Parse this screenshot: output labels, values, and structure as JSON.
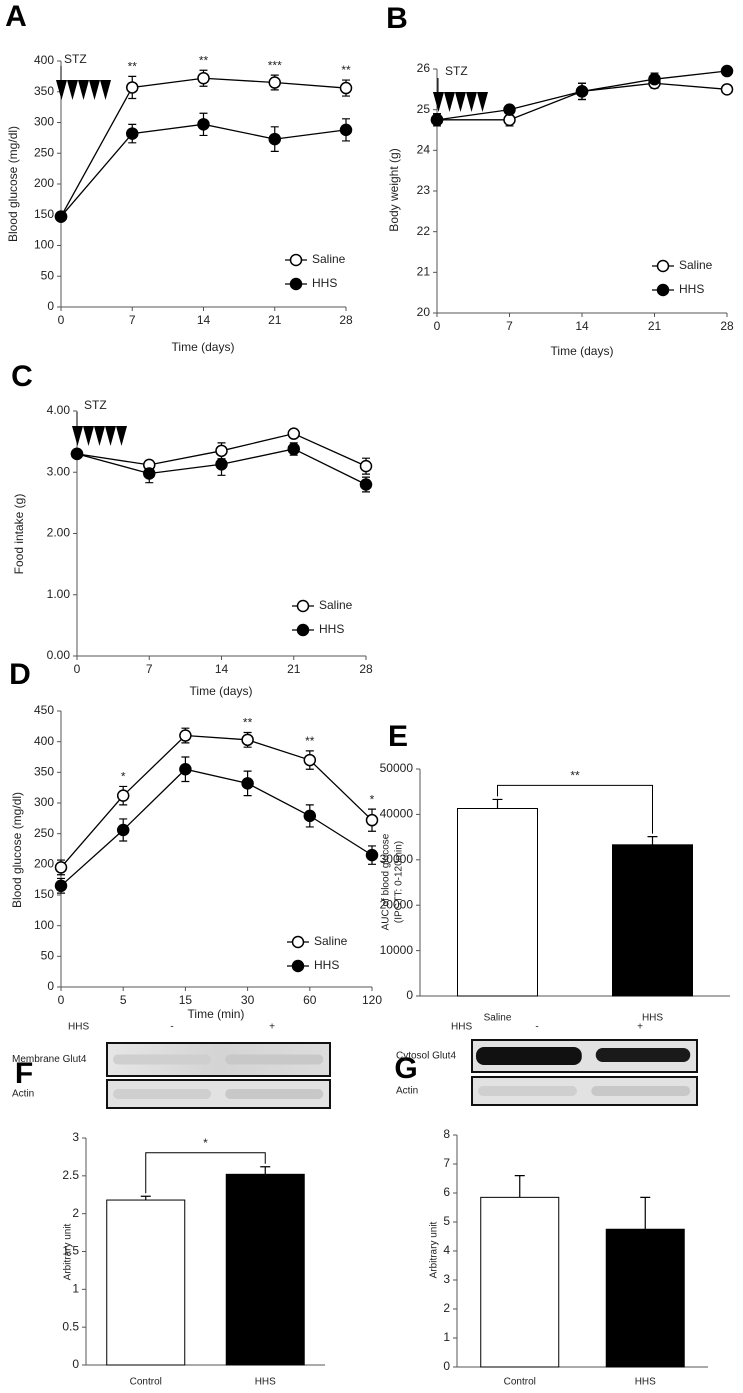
{
  "chart_data": [
    {
      "type": "line",
      "label": "A",
      "xlabel": "Time (days)",
      "ylabel": "Blood glucose (mg/dl)",
      "annotation": "STZ",
      "x": [
        0,
        7,
        14,
        21,
        28
      ],
      "xlim": [
        0,
        28
      ],
      "xticks": [
        0,
        7,
        14,
        21,
        28
      ],
      "ylim": [
        0,
        400
      ],
      "yticks": [
        0,
        50,
        100,
        150,
        200,
        250,
        300,
        350,
        400
      ],
      "series": [
        {
          "name": "Saline",
          "color": "#ffffff",
          "values": [
            147,
            357,
            372,
            365,
            356
          ],
          "errors": [
            5,
            18,
            13,
            12,
            13
          ]
        },
        {
          "name": "HHS",
          "color": "#000000",
          "values": [
            147,
            282,
            297,
            273,
            288
          ],
          "errors": [
            5,
            15,
            18,
            20,
            18
          ]
        }
      ],
      "significance": [
        null,
        "**",
        "**",
        "***",
        "**"
      ],
      "legend": "lower right"
    },
    {
      "type": "line",
      "label": "B",
      "xlabel": "Time (days)",
      "ylabel": "Body weight (g)",
      "annotation": "STZ",
      "x": [
        0,
        7,
        14,
        21,
        28
      ],
      "xlim": [
        0,
        28
      ],
      "xticks": [
        0,
        7,
        14,
        21,
        28
      ],
      "ylim": [
        20,
        26
      ],
      "yticks": [
        20,
        21,
        22,
        23,
        24,
        25,
        26
      ],
      "series": [
        {
          "name": "Saline",
          "color": "#ffffff",
          "values": [
            24.75,
            24.75,
            25.45,
            25.65,
            25.5
          ],
          "errors": [
            0.15,
            0.15,
            0.2,
            0.12,
            0.05
          ]
        },
        {
          "name": "HHS",
          "color": "#000000",
          "values": [
            24.75,
            25.0,
            25.45,
            25.75,
            25.95
          ],
          "errors": [
            0.15,
            0.1,
            0.2,
            0.15,
            0.05
          ]
        }
      ],
      "legend": "lower right"
    },
    {
      "type": "line",
      "label": "C",
      "xlabel": "Time (days)",
      "ylabel": "Food intake (g)",
      "annotation": "STZ",
      "x": [
        0,
        7,
        14,
        21,
        28
      ],
      "xlim": [
        0,
        28
      ],
      "xticks": [
        0,
        7,
        14,
        21,
        28
      ],
      "ylim": [
        0,
        4
      ],
      "yticks": [
        {
          "value": 0,
          "label": "0.00"
        },
        {
          "value": 1,
          "label": "1.00"
        },
        {
          "value": 2,
          "label": "2.00"
        },
        {
          "value": 3,
          "label": "3.00"
        },
        {
          "value": 4,
          "label": "4.00"
        }
      ],
      "series": [
        {
          "name": "Saline",
          "color": "#ffffff",
          "values": [
            3.3,
            3.12,
            3.35,
            3.63,
            3.1
          ],
          "errors": [
            0.05,
            0.07,
            0.13,
            0.05,
            0.13
          ]
        },
        {
          "name": "HHS",
          "color": "#000000",
          "values": [
            3.3,
            2.98,
            3.13,
            3.38,
            2.8
          ],
          "errors": [
            0.05,
            0.15,
            0.18,
            0.1,
            0.12
          ]
        }
      ],
      "legend": "lower right"
    },
    {
      "type": "line",
      "label": "D",
      "xlabel": "Time (min)",
      "ylabel": "Blood glucose (mg/dl)",
      "categories": [
        "0",
        "5",
        "15",
        "30",
        "60",
        "120"
      ],
      "ylim": [
        0,
        450
      ],
      "yticks": [
        0,
        50,
        100,
        150,
        200,
        250,
        300,
        350,
        400,
        450
      ],
      "series": [
        {
          "name": "Saline",
          "color": "#ffffff",
          "values": [
            195,
            312,
            410,
            403,
            370,
            272
          ],
          "errors": [
            12,
            15,
            12,
            12,
            15,
            18
          ]
        },
        {
          "name": "HHS",
          "color": "#000000",
          "values": [
            165,
            256,
            355,
            332,
            279,
            215
          ],
          "errors": [
            12,
            18,
            20,
            20,
            18,
            15
          ]
        }
      ],
      "significance": [
        null,
        "*",
        null,
        "**",
        "**",
        "*"
      ],
      "legend": "lower right"
    },
    {
      "type": "bar",
      "label": "E",
      "ylabel": [
        "AUC of blood glucose",
        "(IPGTT: 0-120min)"
      ],
      "categories": [
        "Saline",
        "HHS"
      ],
      "values": [
        41300,
        33300
      ],
      "errors": [
        2000,
        1800
      ],
      "colors": [
        "#ffffff",
        "#000000"
      ],
      "ylim": [
        0,
        50000
      ],
      "yticks": [
        0,
        10000,
        20000,
        30000,
        40000,
        50000
      ],
      "significance": "**"
    },
    {
      "type": "bar",
      "label": "F",
      "ylabel": [
        "Arbitrary unit"
      ],
      "blot": {
        "treatment": "HHS",
        "lanes": [
          "-",
          "+"
        ],
        "rows": [
          "Membrane Glut4",
          "Actin"
        ]
      },
      "categories": [
        "Control",
        "HHS"
      ],
      "values": [
        2.18,
        2.52
      ],
      "errors": [
        0.05,
        0.1
      ],
      "colors": [
        "#ffffff",
        "#000000"
      ],
      "ylim": [
        0,
        3
      ],
      "yticks": [
        0,
        0.5,
        1,
        1.5,
        2,
        2.5,
        3
      ],
      "significance": "*"
    },
    {
      "type": "bar",
      "label": "G",
      "ylabel": [
        "Arbitrary unit"
      ],
      "blot": {
        "treatment": "HHS",
        "lanes": [
          "-",
          "+"
        ],
        "rows": [
          "Cytosol Glut4",
          "Actin"
        ]
      },
      "categories": [
        "Control",
        "HHS"
      ],
      "values": [
        5.85,
        4.75
      ],
      "errors": [
        0.75,
        1.1
      ],
      "colors": [
        "#ffffff",
        "#000000"
      ],
      "ylim": [
        0,
        8
      ],
      "yticks": [
        0,
        1,
        2,
        3,
        4,
        5,
        6,
        7,
        8
      ]
    }
  ]
}
